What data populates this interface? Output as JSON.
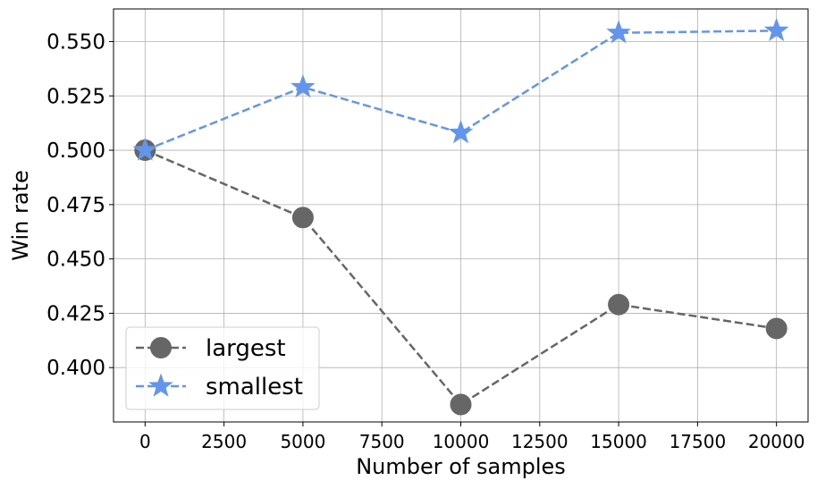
{
  "chart_data": {
    "type": "line",
    "title": "",
    "xlabel": "Number of samples",
    "ylabel": "Win rate",
    "x": [
      0,
      5000,
      10000,
      15000,
      20000
    ],
    "xlim": [
      -1000,
      21000
    ],
    "ylim": [
      0.375,
      0.565
    ],
    "xticks": [
      0,
      2500,
      5000,
      7500,
      10000,
      12500,
      15000,
      17500,
      20000
    ],
    "xtick_labels": [
      "0",
      "2500",
      "5000",
      "7500",
      "10000",
      "12500",
      "15000",
      "17500",
      "20000"
    ],
    "yticks": [
      0.4,
      0.425,
      0.45,
      0.475,
      0.5,
      0.525,
      0.55
    ],
    "ytick_labels": [
      "0.400",
      "0.425",
      "0.450",
      "0.475",
      "0.500",
      "0.525",
      "0.550"
    ],
    "grid": true,
    "legend_position": "lower-left",
    "series": [
      {
        "name": "largest",
        "values": [
          0.5,
          0.469,
          0.383,
          0.429,
          0.418
        ],
        "color": "#666666",
        "marker": "circle",
        "linestyle": "dashed"
      },
      {
        "name": "smallest",
        "values": [
          0.5,
          0.529,
          0.508,
          0.554,
          0.555
        ],
        "color": "#6495ed",
        "marker": "star",
        "linestyle": "dashed"
      }
    ]
  }
}
